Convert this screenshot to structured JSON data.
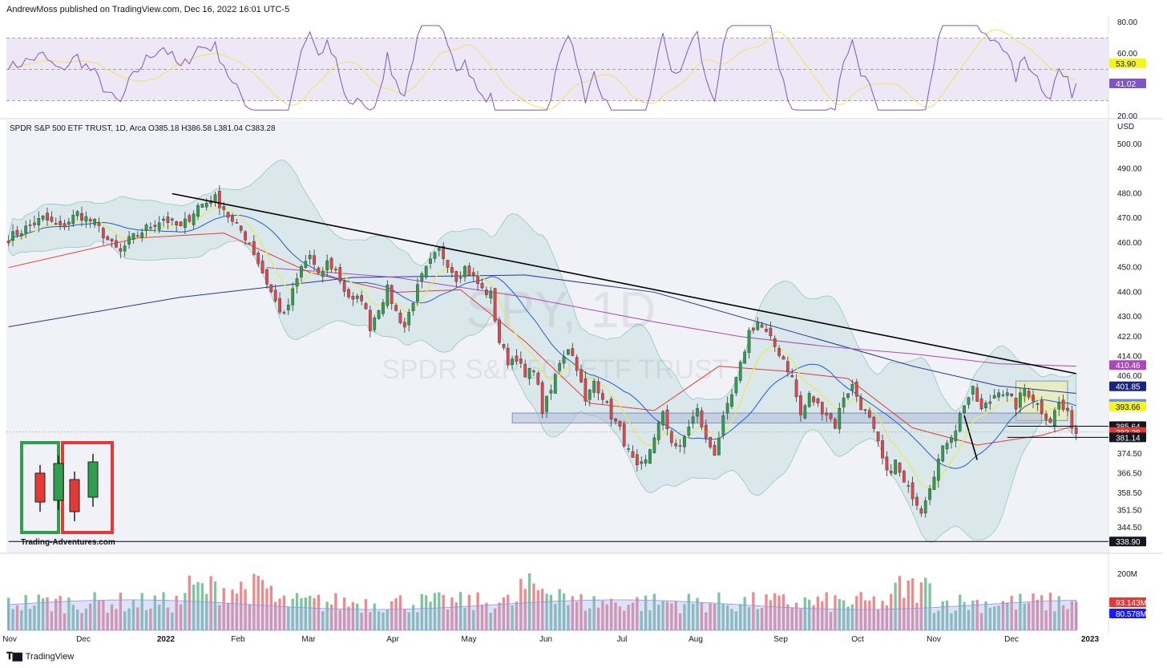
{
  "header": {
    "published": "AndrewMoss published on TradingView.com, Dec 16, 2022 16:01 UTC-5",
    "symbol_line": "SPDR S&P 500 ETF TRUST, 1D, Arca",
    "ohlc": {
      "o_label": "O",
      "o": "385.18",
      "h_label": "H",
      "h": "386.58",
      "l_label": "L",
      "l": "381.04",
      "c_label": "C",
      "c": "383.28"
    }
  },
  "watermark": {
    "ticker": "SPY, 1D",
    "name": "SPDR S&P 500 ETF TRUST"
  },
  "logo": {
    "text": "Trading-Adventures.com"
  },
  "footer": {
    "brand": "TradingView"
  },
  "colors": {
    "up": "#26a69a",
    "up_candle": "#2e9e4f",
    "down": "#e0474c",
    "rsi": "#7e57c2",
    "rsi_ma": "#f0e68c",
    "bb_fill": "#b2d8d8",
    "ma20": "#1e5bd6",
    "ma50": "#e53935",
    "ma100": "#ab47bc",
    "ma200": "#283593",
    "ema": "#f5f57a"
  },
  "chart_data": [
    {
      "type": "line",
      "name": "RSI",
      "yticks": [
        "80.00",
        "60.00",
        "20.00"
      ],
      "ylim": [
        20,
        80
      ],
      "levels": [
        70,
        50,
        30
      ],
      "labels": [
        {
          "value": "53.90",
          "y": 53.9,
          "bg": "#f5f51e",
          "fg": "#131722"
        },
        {
          "value": "41.02",
          "y": 41.02,
          "bg": "#7e57c2",
          "fg": "#ffffff"
        }
      ]
    },
    {
      "type": "candlestick",
      "name": "SPY",
      "currency": "USD",
      "ylim": [
        338,
        505
      ],
      "yticks": [
        "500.00",
        "490.00",
        "480.00",
        "470.00",
        "460.00",
        "450.00",
        "440.00",
        "430.00",
        "422.00",
        "414.00",
        "406.00",
        "374.50",
        "366.50",
        "358.50",
        "351.50",
        "344.50"
      ],
      "xticks": [
        "Nov",
        "Dec",
        "2022",
        "Feb",
        "Mar",
        "Apr",
        "May",
        "Jun",
        "Jul",
        "Aug",
        "Sep",
        "Oct",
        "Nov",
        "Dec",
        "2023"
      ],
      "price_labels": [
        {
          "value": "410.46",
          "y": 410.46,
          "bg": "#ab47bc",
          "fg": "#ffffff"
        },
        {
          "value": "401.85",
          "y": 401.85,
          "bg": "#1a237e",
          "fg": "#ffffff"
        },
        {
          "value": "394.70",
          "y": 394.7,
          "bg": "#5c8df6",
          "fg": "#ffffff"
        },
        {
          "value": "393.66",
          "y": 393.66,
          "bg": "#f5f51e",
          "fg": "#131722"
        },
        {
          "value": "385.70",
          "y": 385.7,
          "bg": "#ef5350",
          "fg": "#ffffff"
        },
        {
          "value": "385.64",
          "y": 385.64,
          "bg": "#131722",
          "fg": "#ffffff"
        },
        {
          "value": "383.28",
          "y": 383.28,
          "bg": "#e53935",
          "fg": "#ffffff"
        },
        {
          "value": "381.14",
          "y": 381.14,
          "bg": "#131722",
          "fg": "#ffffff"
        },
        {
          "value": "338.90",
          "y": 338.9,
          "bg": "#131722",
          "fg": "#ffffff"
        }
      ],
      "close_path": [
        [
          0,
          462
        ],
        [
          4,
          466
        ],
        [
          8,
          470
        ],
        [
          12,
          466
        ],
        [
          16,
          472
        ],
        [
          20,
          468
        ],
        [
          24,
          459
        ],
        [
          26,
          456
        ],
        [
          28,
          461
        ],
        [
          32,
          466
        ],
        [
          36,
          470
        ],
        [
          40,
          466
        ],
        [
          44,
          475
        ],
        [
          48,
          478
        ],
        [
          50,
          474
        ],
        [
          52,
          468
        ],
        [
          54,
          465
        ],
        [
          56,
          460
        ],
        [
          58,
          452
        ],
        [
          60,
          444
        ],
        [
          62,
          436
        ],
        [
          64,
          430
        ],
        [
          66,
          440
        ],
        [
          68,
          450
        ],
        [
          70,
          455
        ],
        [
          72,
          446
        ],
        [
          74,
          452
        ],
        [
          76,
          449
        ],
        [
          78,
          441
        ],
        [
          80,
          436
        ],
        [
          82,
          438
        ],
        [
          84,
          426
        ],
        [
          86,
          434
        ],
        [
          88,
          441
        ],
        [
          90,
          432
        ],
        [
          92,
          426
        ],
        [
          94,
          437
        ],
        [
          96,
          446
        ],
        [
          98,
          452
        ],
        [
          100,
          457
        ],
        [
          102,
          452
        ],
        [
          104,
          446
        ],
        [
          106,
          450
        ],
        [
          108,
          446
        ],
        [
          110,
          441
        ],
        [
          112,
          439
        ],
        [
          114,
          420
        ],
        [
          116,
          412
        ],
        [
          118,
          414
        ],
        [
          120,
          405
        ],
        [
          122,
          410
        ],
        [
          124,
          392
        ],
        [
          126,
          400
        ],
        [
          128,
          412
        ],
        [
          130,
          418
        ],
        [
          132,
          410
        ],
        [
          134,
          395
        ],
        [
          136,
          404
        ],
        [
          138,
          398
        ],
        [
          140,
          390
        ],
        [
          142,
          384
        ],
        [
          144,
          375
        ],
        [
          146,
          368
        ],
        [
          148,
          371
        ],
        [
          150,
          382
        ],
        [
          152,
          390
        ],
        [
          154,
          380
        ],
        [
          156,
          376
        ],
        [
          158,
          386
        ],
        [
          160,
          392
        ],
        [
          162,
          380
        ],
        [
          164,
          375
        ],
        [
          166,
          388
        ],
        [
          168,
          398
        ],
        [
          170,
          410
        ],
        [
          172,
          424
        ],
        [
          174,
          428
        ],
        [
          176,
          423
        ],
        [
          178,
          418
        ],
        [
          180,
          413
        ],
        [
          182,
          405
        ],
        [
          184,
          390
        ],
        [
          186,
          398
        ],
        [
          188,
          394
        ],
        [
          190,
          391
        ],
        [
          192,
          386
        ],
        [
          194,
          398
        ],
        [
          196,
          402
        ],
        [
          198,
          394
        ],
        [
          200,
          388
        ],
        [
          202,
          378
        ],
        [
          204,
          366
        ],
        [
          206,
          371
        ],
        [
          208,
          362
        ],
        [
          210,
          358
        ],
        [
          212,
          352
        ],
        [
          214,
          362
        ],
        [
          216,
          372
        ],
        [
          218,
          380
        ],
        [
          220,
          385
        ],
        [
          222,
          395
        ],
        [
          224,
          400
        ],
        [
          226,
          392
        ],
        [
          228,
          396
        ],
        [
          230,
          401
        ],
        [
          232,
          398
        ],
        [
          234,
          394
        ],
        [
          236,
          401
        ],
        [
          238,
          397
        ],
        [
          240,
          392
        ],
        [
          242,
          388
        ],
        [
          244,
          395
        ],
        [
          246,
          390
        ],
        [
          248,
          383
        ]
      ],
      "moving_averages": [
        {
          "name": "MA200",
          "color": "#283593",
          "path": [
            [
              0,
              426
            ],
            [
              40,
              438
            ],
            [
              80,
              446
            ],
            [
              120,
              447
            ],
            [
              150,
              440
            ],
            [
              180,
              425
            ],
            [
              210,
              410
            ],
            [
              230,
              402
            ],
            [
              248,
              399
            ]
          ]
        },
        {
          "name": "MA100",
          "color": "#ab47bc",
          "path": [
            [
              60,
              450
            ],
            [
              90,
              446
            ],
            [
              120,
              438
            ],
            [
              150,
              428
            ],
            [
              170,
              422
            ],
            [
              190,
              418
            ],
            [
              210,
              415
            ],
            [
              230,
              411
            ],
            [
              248,
              410
            ]
          ]
        },
        {
          "name": "MA50",
          "color": "#e53935",
          "path": [
            [
              0,
              450
            ],
            [
              30,
              462
            ],
            [
              50,
              464
            ],
            [
              70,
              448
            ],
            [
              90,
              440
            ],
            [
              105,
              441
            ],
            [
              120,
              420
            ],
            [
              135,
              395
            ],
            [
              150,
              392
            ],
            [
              165,
              410
            ],
            [
              180,
              408
            ],
            [
              195,
              405
            ],
            [
              210,
              385
            ],
            [
              225,
              378
            ],
            [
              240,
              382
            ],
            [
              248,
              386
            ]
          ]
        }
      ],
      "trendlines": [
        {
          "name": "downtrend",
          "points": [
            [
              38,
              480
            ],
            [
              248,
              407
            ]
          ]
        },
        {
          "name": "short_down",
          "points": [
            [
              222,
              390
            ],
            [
              225,
              372
            ]
          ]
        }
      ],
      "boxes": [
        {
          "name": "consolidation",
          "x": [
            234,
            246
          ],
          "y": [
            388,
            404
          ],
          "fill": "#f0f0a0"
        },
        {
          "name": "support_zone",
          "x": [
            117,
            240
          ],
          "y": [
            387,
            391
          ],
          "fill": "#b0bcd6"
        }
      ],
      "hlines": [
        {
          "value": 385.64,
          "x": [
            232,
            256
          ]
        },
        {
          "value": 381.14,
          "x": [
            232,
            256
          ]
        },
        {
          "value": 338.9,
          "x": [
            0,
            256
          ]
        }
      ]
    },
    {
      "type": "bar",
      "name": "Volume",
      "yticks": [
        "200M"
      ],
      "labels": [
        {
          "value": "93.143M",
          "bg": "#e53935",
          "fg": "#ffffff"
        },
        {
          "value": "80.578M",
          "bg": "#1a1aff",
          "fg": "#ffffff"
        }
      ]
    }
  ]
}
